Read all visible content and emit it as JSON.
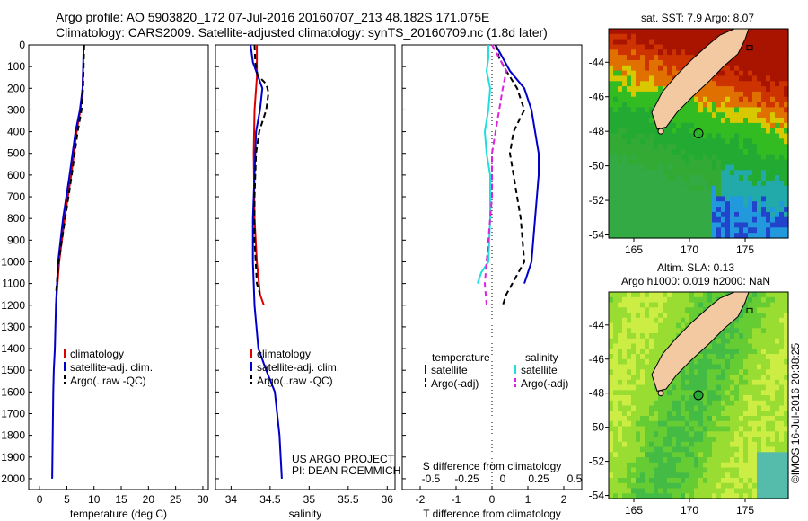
{
  "header": {
    "line1": "Argo profile: AO 5903820_172 07-Jul-2016 20160707_213 48.182S 171.075E",
    "line2": "Climatology: CARS2009. Satellite-adjusted climatology: synTS_20160709.nc (1.8d later)"
  },
  "chart_data": [
    {
      "type": "line",
      "xlabel": "temperature (deg C)",
      "xlim": [
        -2,
        31
      ],
      "ylim": [
        0,
        2050
      ],
      "yticks": [
        0,
        100,
        200,
        300,
        400,
        500,
        600,
        700,
        800,
        900,
        1000,
        1100,
        1200,
        1300,
        1400,
        1500,
        1600,
        1700,
        1800,
        1900,
        2000
      ],
      "xticks": [
        0,
        5,
        10,
        15,
        20,
        25,
        30
      ],
      "legend": {
        "placement": "bottom",
        "entries": [
          "climatology",
          "satellite-adj. clim.",
          "Argo(..raw -QC)"
        ]
      },
      "series": [
        {
          "name": "climatology",
          "color": "#dd0000",
          "x": [
            8.0,
            7.9,
            7.5,
            6.8,
            5.8,
            4.6,
            3.6,
            3.0
          ],
          "y": [
            100,
            200,
            300,
            400,
            600,
            800,
            1000,
            1200
          ]
        },
        {
          "name": "satellite-adj. clim.",
          "color": "#0000cc",
          "x": [
            8.1,
            8.0,
            7.9,
            7.4,
            6.6,
            5.5,
            4.3,
            3.4,
            3.0,
            2.8,
            2.6,
            2.5,
            2.4,
            2.3
          ],
          "y": [
            0,
            100,
            200,
            300,
            400,
            600,
            800,
            1000,
            1200,
            1400,
            1500,
            1600,
            1800,
            2000
          ]
        },
        {
          "name": "Argo(..raw -QC)",
          "color": "#000000",
          "dashed": true,
          "x": [
            8.2,
            8.1,
            8.0,
            7.7,
            7.0,
            5.9,
            4.7,
            3.5,
            3.0
          ],
          "y": [
            0,
            100,
            200,
            300,
            400,
            600,
            800,
            1000,
            1150
          ]
        }
      ]
    },
    {
      "type": "line",
      "xlabel": "salinity",
      "xlim": [
        33.8,
        36.1
      ],
      "ylim": [
        0,
        2050
      ],
      "xticks": [
        34,
        34.5,
        35,
        35.5,
        36
      ],
      "legend": {
        "placement": "bottom",
        "entries": [
          "climatology",
          "satellite-adj. clim.",
          "Argo(..raw -QC)"
        ]
      },
      "annotation": [
        "US ARGO PROJECT",
        "PI: DEAN ROEMMICH"
      ],
      "series": [
        {
          "name": "climatology",
          "color": "#dd0000",
          "x": [
            34.33,
            34.33,
            34.3,
            34.29,
            34.3,
            34.33,
            34.37,
            34.42
          ],
          "y": [
            0,
            150,
            300,
            500,
            800,
            1000,
            1150,
            1200
          ]
        },
        {
          "name": "satellite-adj. clim.",
          "color": "#0000cc",
          "x": [
            34.25,
            34.28,
            34.32,
            34.4,
            34.37,
            34.32,
            34.3,
            34.28,
            34.28,
            34.3,
            34.35,
            34.45,
            34.56,
            34.62,
            34.65
          ],
          "y": [
            0,
            80,
            120,
            200,
            300,
            400,
            600,
            800,
            1000,
            1200,
            1400,
            1500,
            1600,
            1800,
            2000
          ]
        },
        {
          "name": "Argo(..raw -QC)",
          "color": "#000000",
          "dashed": true,
          "x": [
            34.3,
            34.31,
            34.34,
            34.45,
            34.48,
            34.45,
            34.36,
            34.32,
            34.3,
            34.3,
            34.33,
            34.37
          ],
          "y": [
            0,
            80,
            140,
            180,
            220,
            300,
            400,
            500,
            700,
            900,
            1100,
            1150
          ]
        }
      ]
    },
    {
      "type": "line",
      "xlabel": "T difference from climatology",
      "xlabel2": "S difference from climatology",
      "xlim": [
        -2.5,
        2.5
      ],
      "ylim": [
        0,
        2050
      ],
      "xticks": [
        -2,
        -1,
        0,
        1,
        2
      ],
      "xticks2": [
        "-0.5",
        "-0.25",
        "0",
        "0.25",
        "0.5"
      ],
      "xticks2_pos": [
        -2,
        -1,
        0,
        1,
        2
      ],
      "legend": {
        "placement": "bottom",
        "headers": [
          "temperature",
          "salinity"
        ],
        "entries": [
          "satellite",
          "Argo(-adj)",
          "satellite",
          "Argo(-adj)"
        ]
      },
      "series": [
        {
          "name": "temperature satellite",
          "color": "#0000cc",
          "x": [
            0.1,
            0.3,
            0.5,
            0.9,
            1.1,
            1.2,
            1.3,
            1.3,
            1.2,
            1.1,
            0.9
          ],
          "y": [
            0,
            60,
            120,
            200,
            300,
            400,
            500,
            600,
            800,
            1000,
            1100
          ]
        },
        {
          "name": "temperature Argo(-adj)",
          "color": "#000000",
          "dashed": true,
          "x": [
            0.1,
            0.2,
            0.4,
            0.7,
            0.9,
            0.6,
            0.5,
            0.6,
            0.8,
            0.9,
            0.4,
            0.3
          ],
          "y": [
            0,
            60,
            120,
            200,
            300,
            400,
            500,
            600,
            800,
            1000,
            1150,
            1200
          ]
        },
        {
          "name": "salinity satellite",
          "color": "#22dddd",
          "x": [
            -0.1,
            -0.1,
            -0.15,
            -0.05,
            -0.1,
            -0.2,
            -0.15,
            -0.05,
            -0.05,
            -0.1,
            -0.3,
            -0.4
          ],
          "y": [
            0,
            60,
            120,
            200,
            300,
            400,
            500,
            600,
            800,
            1000,
            1050,
            1100
          ]
        },
        {
          "name": "salinity Argo(-adj)",
          "color": "#dd22dd",
          "dashed": true,
          "x": [
            0.0,
            0.2,
            0.4,
            0.3,
            0.2,
            0.1,
            0.0,
            0.0,
            -0.1,
            -0.2,
            -0.15
          ],
          "y": [
            0,
            60,
            120,
            200,
            300,
            400,
            500,
            700,
            900,
            1100,
            1200
          ]
        }
      ]
    }
  ],
  "maps": [
    {
      "title": "sat. SST: 7.9  Argo: 8.07",
      "xticks": [
        "165",
        "170",
        "175"
      ],
      "yticks": [
        "-44",
        "-46",
        "-48",
        "-50",
        "-52",
        "-54"
      ]
    },
    {
      "title1": "Altim. SLA: 0.13",
      "title2": "Argo h1000: 0.019 h2000: NaN",
      "xticks": [
        "165",
        "170",
        "175"
      ],
      "yticks": [
        "-44",
        "-46",
        "-48",
        "-50",
        "-52",
        "-54"
      ],
      "stamp": "©IMOS 16-Jul-2016 20:38:25"
    }
  ],
  "colors": {
    "red": "#dd0000",
    "blue": "#0000cc",
    "cyan": "#22dddd",
    "magenta": "#dd22dd",
    "land": "#f2c9a0"
  }
}
